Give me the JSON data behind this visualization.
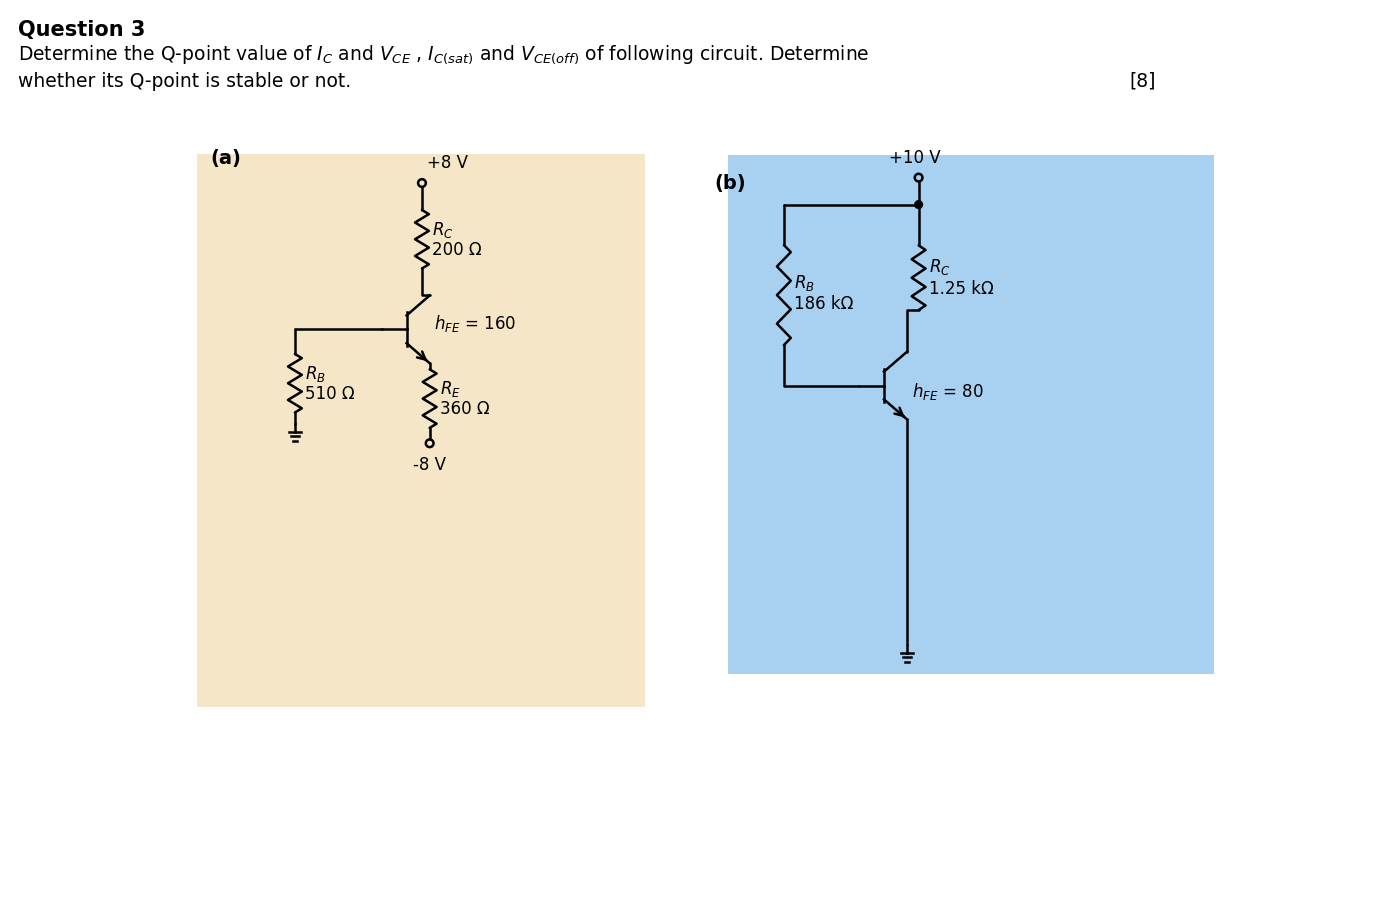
{
  "title_line1": "Question 3",
  "title_line2": "Determine the Q-point value of $I_C$ and $V_{CE}$ , $I_{C(sat)}$ and $V_{CE(off)}$ of following circuit. Determine",
  "title_line3": "whether its Q-point is stable or not.",
  "title_mark": "[8]",
  "bg_color_a": "#f5e6c8",
  "bg_color_b": "#a8d0f0",
  "label_a": "(a)",
  "label_b": "(b)",
  "circuit_a": {
    "vcc": "+8 V",
    "vee": "-8 V",
    "rc_val": "200 Ω",
    "rb_val": "510 Ω",
    "re_val": "360 Ω",
    "hfe_val": "= 160"
  },
  "circuit_b": {
    "vcc": "+10 V",
    "rc_val": "1.25 kΩ",
    "rb_val": "186 kΩ",
    "hfe_val": "= 80"
  }
}
